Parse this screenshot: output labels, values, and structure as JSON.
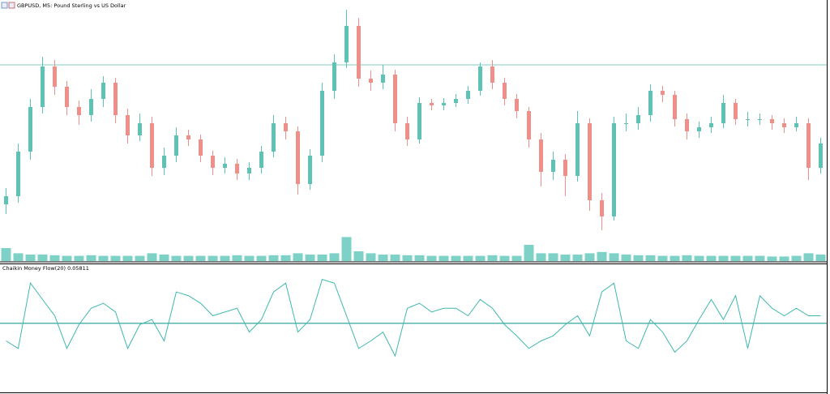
{
  "chart_data": [
    {
      "type": "candlestick",
      "title": "GBPUSD, M5: Pound Sterling vs US Dollar",
      "open": [
        70,
        80,
        135,
        190,
        240,
        215,
        190,
        180,
        200,
        220,
        180,
        155,
        170,
        115,
        130,
        155,
        150,
        130,
        115,
        120,
        108,
        115,
        135,
        170,
        160,
        95,
        130,
        210,
        245,
        290,
        225,
        220,
        230,
        170,
        150,
        195,
        192,
        195,
        200,
        210,
        240,
        220,
        200,
        185,
        150,
        110,
        125,
        105,
        170,
        75,
        55,
        170,
        170,
        180,
        210,
        205,
        175,
        160,
        165,
        170,
        195,
        175,
        175,
        175,
        170,
        165,
        170,
        115
      ],
      "high": [
        90,
        145,
        200,
        252,
        248,
        222,
        198,
        212,
        228,
        226,
        188,
        182,
        178,
        140,
        165,
        162,
        156,
        136,
        128,
        126,
        122,
        142,
        180,
        178,
        166,
        138,
        220,
        255,
        310,
        300,
        235,
        242,
        236,
        178,
        202,
        200,
        201,
        206,
        216,
        245,
        248,
        226,
        206,
        190,
        158,
        135,
        132,
        185,
        176,
        84,
        178,
        182,
        190,
        218,
        216,
        210,
        182,
        172,
        178,
        205,
        200,
        184,
        182,
        180,
        176,
        178,
        176,
        152
      ],
      "low": [
        58,
        72,
        125,
        182,
        205,
        180,
        168,
        172,
        190,
        170,
        145,
        148,
        105,
        106,
        122,
        142,
        122,
        106,
        108,
        100,
        100,
        108,
        128,
        150,
        82,
        88,
        122,
        200,
        238,
        215,
        210,
        212,
        160,
        142,
        145,
        186,
        186,
        190,
        194,
        204,
        212,
        192,
        176,
        140,
        92,
        100,
        80,
        98,
        62,
        38,
        50,
        160,
        162,
        172,
        196,
        166,
        150,
        152,
        158,
        164,
        168,
        166,
        168,
        162,
        158,
        160,
        100,
        108
      ],
      "close": [
        80,
        135,
        190,
        240,
        215,
        190,
        180,
        200,
        220,
        180,
        155,
        170,
        115,
        130,
        155,
        150,
        130,
        115,
        120,
        108,
        115,
        135,
        170,
        160,
        95,
        130,
        210,
        245,
        290,
        225,
        220,
        230,
        170,
        150,
        195,
        192,
        195,
        200,
        210,
        240,
        220,
        200,
        185,
        150,
        110,
        125,
        105,
        170,
        75,
        55,
        170,
        170,
        180,
        210,
        205,
        175,
        160,
        165,
        170,
        195,
        175,
        175,
        175,
        170,
        165,
        170,
        115,
        145
      ],
      "up_color": "#5ec3b4",
      "down_color": "#ef8f89",
      "ylim": [
        0,
        320
      ],
      "hline": 242,
      "hline_color": "#7fd0c6",
      "volume": {
        "color": "#7dd1c6",
        "values": [
          20,
          12,
          10,
          10,
          9,
          8,
          8,
          9,
          8,
          8,
          8,
          8,
          12,
          10,
          8,
          8,
          8,
          8,
          8,
          9,
          8,
          8,
          9,
          9,
          12,
          10,
          10,
          12,
          37,
          15,
          12,
          10,
          10,
          9,
          9,
          8,
          8,
          8,
          8,
          8,
          9,
          8,
          8,
          25,
          12,
          12,
          10,
          10,
          12,
          14,
          12,
          10,
          9,
          9,
          8,
          8,
          9,
          8,
          8,
          8,
          8,
          8,
          8,
          7,
          7,
          8,
          12,
          10
        ]
      },
      "y2lim": [
        0,
        400
      ]
    },
    {
      "type": "line",
      "title": "Chaikin Money Flow(20) 0.05811",
      "values": [
        -0.14,
        -0.2,
        0.32,
        0.19,
        0.06,
        -0.2,
        -0.01,
        0.12,
        0.16,
        0.09,
        -0.2,
        -0.01,
        0.03,
        -0.14,
        0.25,
        0.22,
        0.16,
        0.06,
        0.09,
        0.12,
        -0.07,
        0.03,
        0.25,
        0.32,
        -0.07,
        0.03,
        0.35,
        0.32,
        0.06,
        -0.2,
        -0.14,
        -0.07,
        -0.26,
        0.12,
        0.16,
        0.09,
        0.12,
        0.12,
        0.06,
        0.19,
        0.12,
        -0.01,
        -0.1,
        -0.2,
        -0.14,
        -0.1,
        -0.01,
        0.06,
        -0.1,
        0.25,
        0.32,
        -0.14,
        -0.2,
        0.03,
        -0.07,
        -0.23,
        -0.14,
        0.03,
        0.19,
        0.03,
        0.22,
        -0.2,
        0.22,
        0.12,
        0.06,
        0.12,
        0.06,
        0.06
      ],
      "color": "#3fb8ae",
      "ylim": [
        -0.55,
        0.47
      ],
      "hline": 0,
      "hline_color": "#1f9e94"
    }
  ]
}
